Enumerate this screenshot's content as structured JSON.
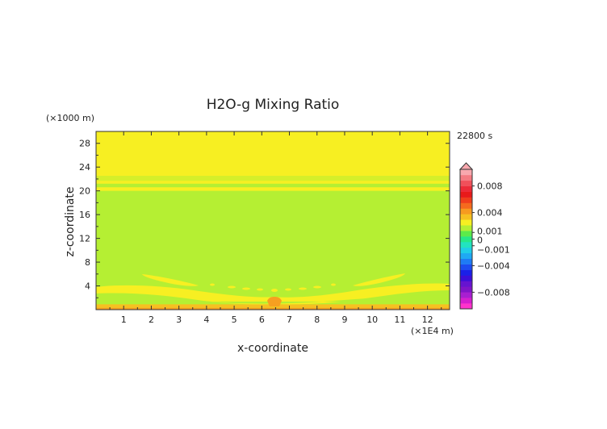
{
  "chart_data": {
    "type": "heatmap",
    "title": "H2O-g Mixing Ratio",
    "time_label": "22800 s",
    "xlabel": "x-coordinate",
    "ylabel": "z-coordinate",
    "x_unit": "(×1E4 m)",
    "y_unit": "(×1000 m)",
    "xlim": [
      0,
      12.8
    ],
    "ylim": [
      0,
      30
    ],
    "x_ticks": [
      1,
      2,
      3,
      4,
      5,
      6,
      7,
      8,
      9,
      10,
      11,
      12
    ],
    "y_ticks": [
      4,
      8,
      12,
      16,
      20,
      24,
      28
    ],
    "background_value_color": "#b5ef33",
    "bands": [
      {
        "z0": 22.5,
        "z1": 30,
        "color": "#f7ef22"
      },
      {
        "z0": 21.7,
        "z1": 22.5,
        "color": "#d5ef2a"
      },
      {
        "z0": 21.2,
        "z1": 21.7,
        "color": "#f7ef22"
      },
      {
        "z0": 20.0,
        "z1": 20.6,
        "color": "#f7ef22"
      },
      {
        "z0": 0.3,
        "z1": 0.9,
        "color": "#f7c021"
      },
      {
        "z0": 0.0,
        "z1": 0.3,
        "color": "#f7a020"
      }
    ],
    "colorbar": {
      "tick_labels": [
        "0.008",
        "0.004",
        "0.001",
        "0",
        "−0.001",
        "−0.004",
        "−0.008"
      ],
      "tick_values": [
        0.008,
        0.004,
        0.001,
        0,
        -0.001,
        -0.004,
        -0.008
      ],
      "range": [
        -0.0105,
        0.0105
      ],
      "colors": [
        "#ff33cc",
        "#d61fcf",
        "#a81fd1",
        "#8015c8",
        "#6614d0",
        "#3b0fd9",
        "#1a20e8",
        "#1c4cf0",
        "#1e7bf5",
        "#1fa9f4",
        "#20cde8",
        "#22e3c0",
        "#26e887",
        "#5ceb4a",
        "#b5ef33",
        "#f7ef22",
        "#f7c021",
        "#f79a20",
        "#f56a1e",
        "#f03e1c",
        "#e81a1a",
        "#ec2b38",
        "#f0505a",
        "#f47b82",
        "#f8a8ae"
      ]
    }
  }
}
